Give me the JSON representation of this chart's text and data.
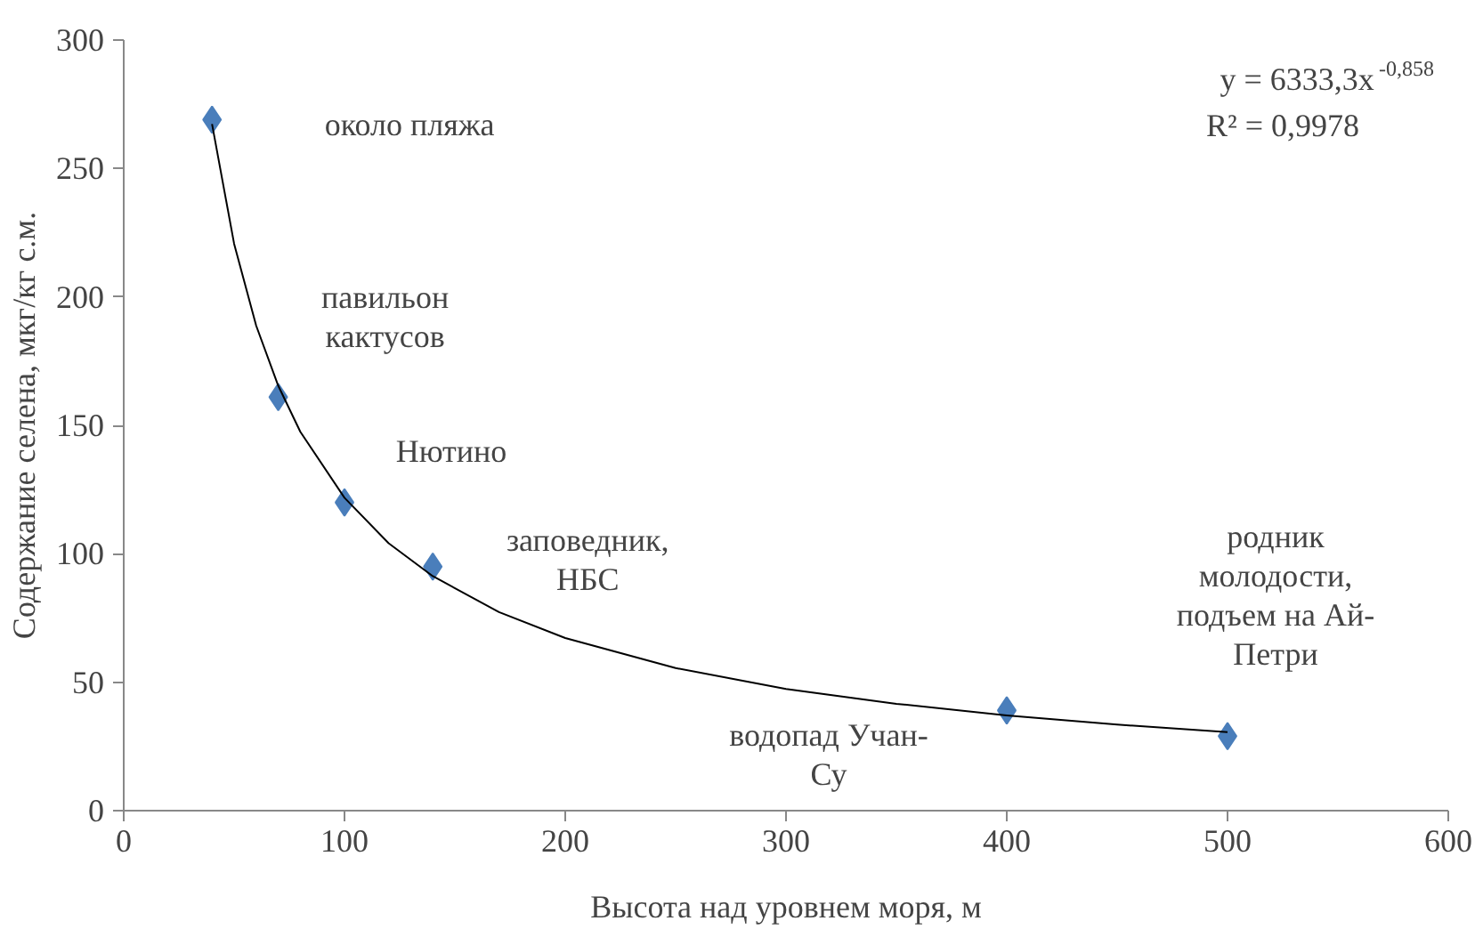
{
  "chart_data": {
    "type": "scatter",
    "xlabel": "Высота над уровнем моря, м",
    "ylabel": "Содержание селена, мкг/кг с.м.",
    "xlim": [
      0,
      600
    ],
    "ylim": [
      0,
      300
    ],
    "xticks": [
      0,
      100,
      200,
      300,
      400,
      500,
      600
    ],
    "yticks": [
      0,
      50,
      100,
      150,
      200,
      250,
      300
    ],
    "grid": false,
    "marker": "diamond",
    "series": [
      {
        "color": "#4a7ebb",
        "x": [
          40,
          70,
          100,
          140,
          400,
          500
        ],
        "values": [
          269,
          161,
          120,
          95,
          39,
          29
        ]
      },
      {
        "type": "line",
        "color": "#000000",
        "marker": "none",
        "x": [
          40,
          50,
          60,
          70,
          80,
          100,
          120,
          140,
          170,
          200,
          250,
          300,
          350,
          400,
          450,
          500
        ],
        "values": [
          267.3,
          220.7,
          188.8,
          165.4,
          147.5,
          121.8,
          104.1,
          91.3,
          77.3,
          67.2,
          55.5,
          47.4,
          41.6,
          37.1,
          33.5,
          30.6
        ]
      }
    ],
    "annotations": [
      "около пляжа",
      {
        "text": "павильон\nкактусов",
        "x": 70,
        "y": 161
      },
      {
        "text": "Нютино",
        "x": 100,
        "y": 120
      },
      {
        "text": "заповедник,\nНБС",
        "x": 140,
        "y": 95
      },
      {
        "text": "водопад Учан-\nСу",
        "x": 400,
        "y": 39
      },
      {
        "text": "родник\nмолодости,\nподъем на Ай-\nПетри",
        "x": 500,
        "y": 29
      },
      "y = 6333,3x$^{-0,858}$",
      "R² = 0,9978"
    ]
  }
}
